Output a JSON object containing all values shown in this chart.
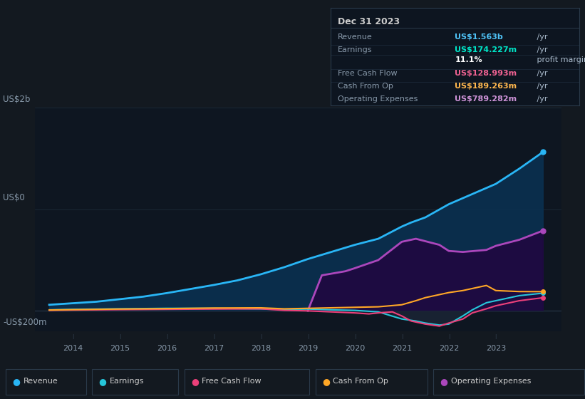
{
  "bg_color": "#131920",
  "plot_bg_color": "#0e1621",
  "grid_color": "#1e2d3d",
  "title_box": {
    "date": "Dec 31 2023",
    "rows": [
      {
        "label": "Revenue",
        "value": "US$1.563b",
        "suffix": " /yr",
        "value_color": "#4fc3f7"
      },
      {
        "label": "Earnings",
        "value": "US$174.227m",
        "suffix": " /yr",
        "value_color": "#00e5c8"
      },
      {
        "label": "",
        "value": "11.1%",
        "suffix": " profit margin",
        "value_color": "#ffffff"
      },
      {
        "label": "Free Cash Flow",
        "value": "US$128.993m",
        "suffix": " /yr",
        "value_color": "#f06292"
      },
      {
        "label": "Cash From Op",
        "value": "US$189.263m",
        "suffix": " /yr",
        "value_color": "#ffb74d"
      },
      {
        "label": "Operating Expenses",
        "value": "US$789.282m",
        "suffix": " /yr",
        "value_color": "#ce93d8"
      }
    ]
  },
  "ylabel_top": "US$2b",
  "ylabel_zero": "US$0",
  "ylabel_neg": "-US$200m",
  "x_labels": [
    "2014",
    "2015",
    "2016",
    "2017",
    "2018",
    "2019",
    "2020",
    "2021",
    "2022",
    "2023"
  ],
  "ylim": [
    -200,
    2000
  ],
  "revenue_color": "#29b6f6",
  "revenue_fill": "#0d3a5c",
  "op_exp_color": "#ab47bc",
  "op_exp_fill": "#2a0e52",
  "earnings_color": "#26c6da",
  "fcf_color": "#ec407a",
  "cop_color": "#ffa726",
  "legend_items": [
    {
      "label": "Revenue",
      "color": "#29b6f6"
    },
    {
      "label": "Earnings",
      "color": "#26c6da"
    },
    {
      "label": "Free Cash Flow",
      "color": "#ec407a"
    },
    {
      "label": "Cash From Op",
      "color": "#ffa726"
    },
    {
      "label": "Operating Expenses",
      "color": "#ab47bc"
    }
  ],
  "revenue_x": [
    2013.5,
    2014.0,
    2014.5,
    2015.0,
    2015.5,
    2016.0,
    2016.5,
    2017.0,
    2017.5,
    2018.0,
    2018.5,
    2019.0,
    2019.5,
    2020.0,
    2020.5,
    2021.0,
    2021.2,
    2021.5,
    2022.0,
    2022.5,
    2023.0,
    2023.5,
    2024.0
  ],
  "revenue_y": [
    60,
    75,
    90,
    115,
    140,
    175,
    215,
    255,
    300,
    360,
    430,
    510,
    580,
    650,
    710,
    830,
    870,
    920,
    1050,
    1150,
    1250,
    1400,
    1563
  ],
  "op_exp_x": [
    2019.0,
    2019.3,
    2019.8,
    2020.0,
    2020.5,
    2021.0,
    2021.3,
    2021.8,
    2022.0,
    2022.3,
    2022.8,
    2023.0,
    2023.5,
    2024.0
  ],
  "op_exp_y": [
    0,
    350,
    390,
    420,
    500,
    680,
    710,
    650,
    590,
    580,
    600,
    640,
    700,
    789
  ],
  "earnings_x": [
    2013.5,
    2014.0,
    2015.0,
    2016.0,
    2017.0,
    2018.0,
    2018.5,
    2019.0,
    2019.5,
    2020.0,
    2020.5,
    2021.0,
    2021.3,
    2021.5,
    2021.8,
    2022.0,
    2022.3,
    2022.5,
    2022.8,
    2023.0,
    2023.5,
    2024.0
  ],
  "earnings_y": [
    10,
    15,
    20,
    25,
    25,
    20,
    15,
    18,
    10,
    5,
    -10,
    -80,
    -100,
    -120,
    -140,
    -130,
    -50,
    10,
    80,
    100,
    150,
    174
  ],
  "fcf_x": [
    2013.5,
    2014.0,
    2015.0,
    2016.0,
    2017.0,
    2018.0,
    2018.5,
    2019.0,
    2019.5,
    2020.0,
    2020.3,
    2020.5,
    2020.8,
    2021.0,
    2021.2,
    2021.5,
    2021.8,
    2022.0,
    2022.3,
    2022.5,
    2022.8,
    2023.0,
    2023.5,
    2024.0
  ],
  "fcf_y": [
    5,
    8,
    12,
    15,
    18,
    20,
    5,
    0,
    -10,
    -20,
    -30,
    -20,
    -10,
    -50,
    -100,
    -130,
    -150,
    -120,
    -80,
    -20,
    20,
    50,
    100,
    129
  ],
  "cop_x": [
    2013.5,
    2014.0,
    2015.0,
    2016.0,
    2017.0,
    2018.0,
    2018.5,
    2019.0,
    2019.5,
    2020.0,
    2020.5,
    2021.0,
    2021.3,
    2021.5,
    2021.8,
    2022.0,
    2022.3,
    2022.5,
    2022.8,
    2023.0,
    2023.5,
    2024.0
  ],
  "cop_y": [
    8,
    12,
    18,
    22,
    28,
    30,
    20,
    25,
    30,
    35,
    40,
    60,
    100,
    130,
    160,
    180,
    200,
    220,
    250,
    200,
    190,
    189
  ]
}
